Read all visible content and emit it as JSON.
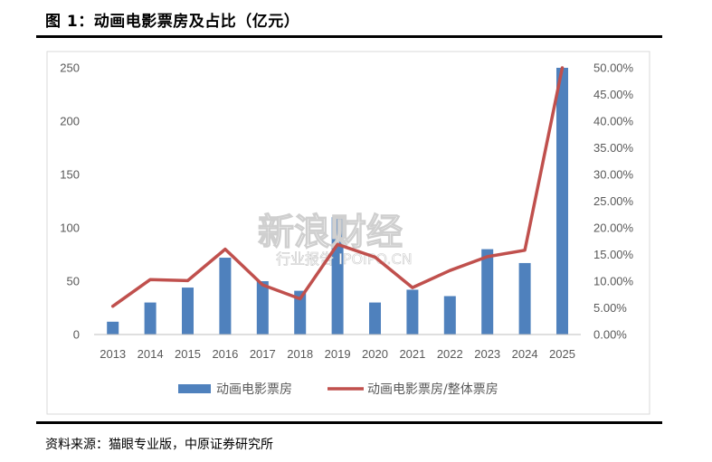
{
  "figure": {
    "title": "图 1：动画电影票房及占比（亿元）",
    "source": "资料来源：猫眼专业版，中原证券研究所"
  },
  "watermark": {
    "main": "新浪财经",
    "sub": "行业报告 IPOIPO.CN"
  },
  "chart_data": {
    "type": "bar",
    "categories": [
      "2013",
      "2014",
      "2015",
      "2016",
      "2017",
      "2018",
      "2019",
      "2020",
      "2021",
      "2022",
      "2023",
      "2024",
      "2025"
    ],
    "series": [
      {
        "name": "动画电影票房",
        "type": "bar",
        "axis": "left",
        "color": "#4F81BD",
        "values": [
          12,
          30,
          44,
          72,
          50,
          41,
          110,
          30,
          42,
          36,
          80,
          67,
          250
        ]
      },
      {
        "name": "动画电影票房/整体票房",
        "type": "line",
        "axis": "right",
        "color": "#C0504D",
        "values": [
          5.3,
          10.3,
          10.1,
          16.0,
          9.3,
          6.7,
          16.9,
          14.5,
          8.8,
          12.0,
          14.6,
          15.8,
          50.0
        ]
      }
    ],
    "y_left": {
      "min": 0,
      "max": 250,
      "ticks": [
        "0",
        "50",
        "100",
        "150",
        "200",
        "250"
      ]
    },
    "y_right": {
      "min": 0,
      "max": 50,
      "ticks": [
        "0.00%",
        "5.00%",
        "10.00%",
        "15.00%",
        "20.00%",
        "25.00%",
        "30.00%",
        "35.00%",
        "40.00%",
        "45.00%",
        "50.00%"
      ]
    },
    "grid": false,
    "legend_position": "bottom"
  }
}
